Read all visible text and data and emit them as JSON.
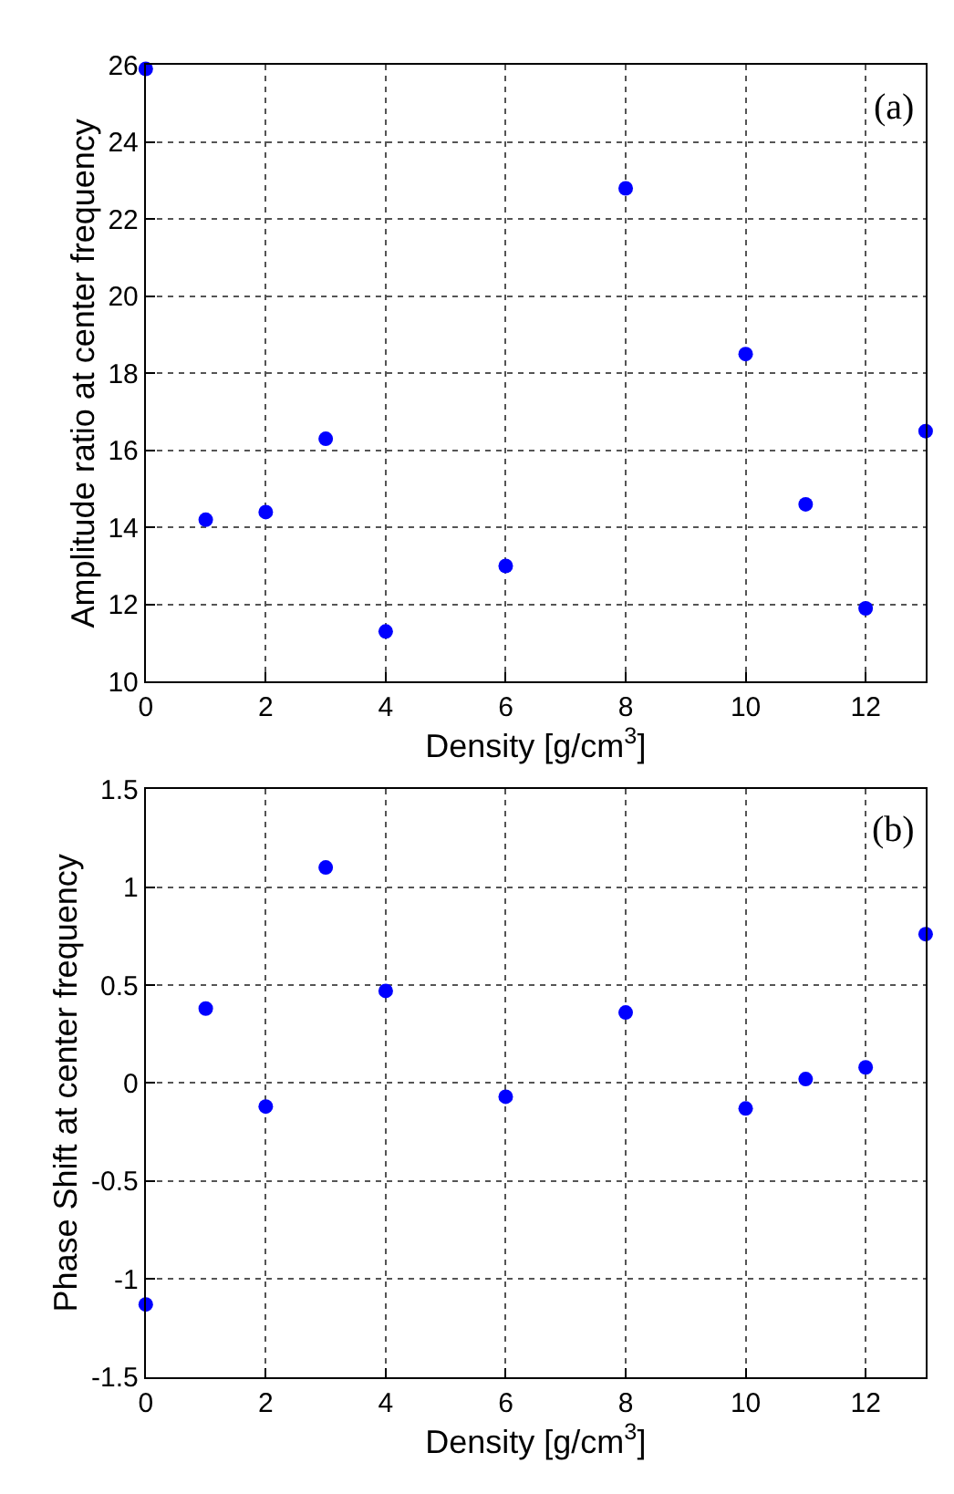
{
  "chart_data": [
    {
      "type": "scatter",
      "xlabel": "Density [g/cm$^{3}$]",
      "ylabel": "Amplitude ratio at center frequency",
      "annotations": [
        "(a)"
      ],
      "x": [
        0,
        1,
        2,
        3,
        4,
        6,
        8,
        10,
        11,
        12,
        13
      ],
      "series": [
        {
          "color": "#0000ff",
          "values": [
            25.9,
            14.2,
            14.4,
            16.3,
            11.3,
            13.0,
            22.8,
            18.5,
            14.6,
            11.9,
            16.5
          ]
        }
      ],
      "xlim": [
        0,
        13
      ],
      "xticks": [
        0,
        2,
        4,
        6,
        8,
        10,
        12
      ],
      "ylim": [
        10,
        26
      ],
      "yticks": [
        10,
        12,
        14,
        16,
        18,
        20,
        22,
        24,
        26
      ],
      "grid": true,
      "marker": "circle"
    },
    {
      "type": "scatter",
      "xlabel": "Density [g/cm$^{3}$]",
      "ylabel": "Phase Shift at center frequency",
      "annotations": [
        "(b)"
      ],
      "x": [
        0,
        1,
        2,
        3,
        4,
        6,
        8,
        10,
        11,
        12,
        13
      ],
      "series": [
        {
          "color": "#0000ff",
          "values": [
            -1.13,
            0.38,
            -0.12,
            1.1,
            0.47,
            -0.07,
            0.36,
            -0.13,
            0.02,
            0.08,
            0.76
          ]
        }
      ],
      "xlim": [
        0,
        13
      ],
      "xticks": [
        0,
        2,
        4,
        6,
        8,
        10,
        12
      ],
      "ylim": [
        -1.5,
        1.5
      ],
      "yticks": [
        -1.5,
        -1,
        -0.5,
        0,
        0.5,
        1,
        1.5
      ],
      "grid": true,
      "marker": "circle"
    }
  ]
}
